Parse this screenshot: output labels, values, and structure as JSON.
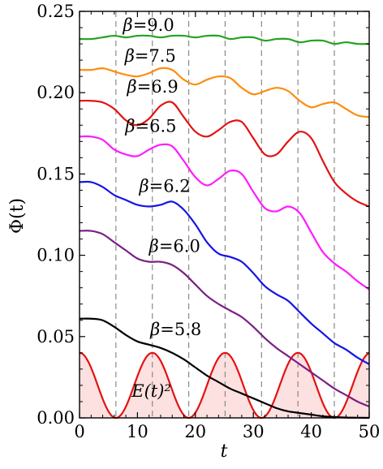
{
  "chart_data": {
    "type": "line",
    "xlabel": "t",
    "ylabel": "Φ(t)",
    "xlim": [
      0,
      50
    ],
    "ylim": [
      0,
      0.25
    ],
    "x_ticks": [
      "0",
      "10",
      "20",
      "30",
      "40",
      "50"
    ],
    "y_ticks": [
      "0.00",
      "0.05",
      "0.10",
      "0.15",
      "0.20",
      "0.25"
    ],
    "vlines_x": [
      6.28,
      12.57,
      18.85,
      25.13,
      31.42,
      37.7,
      43.98
    ],
    "series": [
      {
        "name": "β=9.0",
        "color": "#22a322",
        "x": [
          0,
          2,
          4,
          6,
          8,
          10,
          12,
          14,
          16,
          18,
          20,
          22,
          24,
          26,
          28,
          30,
          32,
          34,
          36,
          38,
          40,
          42,
          44,
          46,
          48,
          50
        ],
        "y": [
          0.233,
          0.233,
          0.234,
          0.235,
          0.234,
          0.235,
          0.235,
          0.234,
          0.235,
          0.235,
          0.234,
          0.235,
          0.235,
          0.233,
          0.234,
          0.234,
          0.232,
          0.233,
          0.233,
          0.231,
          0.232,
          0.232,
          0.23,
          0.231,
          0.23,
          0.23
        ]
      },
      {
        "name": "β=7.5",
        "color": "#ff8c0f",
        "x": [
          0,
          2,
          4,
          6,
          8,
          10,
          12,
          14,
          16,
          18,
          20,
          22,
          24,
          26,
          28,
          30,
          32,
          34,
          36,
          38,
          40,
          42,
          44,
          46,
          48,
          50
        ],
        "y": [
          0.214,
          0.214,
          0.215,
          0.213,
          0.211,
          0.21,
          0.212,
          0.215,
          0.214,
          0.208,
          0.205,
          0.208,
          0.21,
          0.209,
          0.203,
          0.199,
          0.201,
          0.203,
          0.201,
          0.195,
          0.191,
          0.193,
          0.194,
          0.19,
          0.186,
          0.185
        ]
      },
      {
        "name": "β=6.9",
        "color": "#e31212",
        "x": [
          0,
          2,
          4,
          6,
          8,
          10,
          12,
          14,
          16,
          18,
          20,
          22,
          24,
          26,
          28,
          30,
          32,
          34,
          36,
          38,
          40,
          42,
          44,
          46,
          48,
          50
        ],
        "y": [
          0.195,
          0.195,
          0.194,
          0.19,
          0.183,
          0.18,
          0.184,
          0.192,
          0.194,
          0.185,
          0.176,
          0.173,
          0.177,
          0.182,
          0.182,
          0.172,
          0.162,
          0.162,
          0.17,
          0.176,
          0.172,
          0.158,
          0.145,
          0.138,
          0.133,
          0.13
        ]
      },
      {
        "name": "β=6.5",
        "color": "#ff1aff",
        "x": [
          0,
          2,
          4,
          6,
          8,
          10,
          12,
          14,
          16,
          18,
          20,
          22,
          24,
          26,
          28,
          30,
          32,
          34,
          36,
          38,
          40,
          42,
          44,
          46,
          48,
          50
        ],
        "y": [
          0.173,
          0.173,
          0.171,
          0.165,
          0.162,
          0.161,
          0.165,
          0.168,
          0.167,
          0.158,
          0.148,
          0.143,
          0.147,
          0.152,
          0.15,
          0.139,
          0.129,
          0.127,
          0.13,
          0.126,
          0.114,
          0.102,
          0.095,
          0.09,
          0.084,
          0.079
        ]
      },
      {
        "name": "β=6.2",
        "color": "#1414e6",
        "x": [
          0,
          2,
          4,
          6,
          8,
          10,
          12,
          14,
          16,
          18,
          20,
          22,
          24,
          26,
          28,
          30,
          32,
          34,
          36,
          38,
          40,
          42,
          44,
          46,
          48,
          50
        ],
        "y": [
          0.145,
          0.145,
          0.142,
          0.137,
          0.134,
          0.131,
          0.13,
          0.131,
          0.133,
          0.128,
          0.119,
          0.108,
          0.101,
          0.099,
          0.096,
          0.089,
          0.081,
          0.076,
          0.072,
          0.065,
          0.058,
          0.052,
          0.046,
          0.042,
          0.037,
          0.033
        ]
      },
      {
        "name": "β=6.0",
        "color": "#7a1f85",
        "x": [
          0,
          2,
          4,
          6,
          8,
          10,
          12,
          14,
          16,
          18,
          20,
          22,
          24,
          26,
          28,
          30,
          32,
          34,
          36,
          38,
          40,
          42,
          44,
          46,
          48,
          50
        ],
        "y": [
          0.115,
          0.115,
          0.113,
          0.108,
          0.103,
          0.098,
          0.096,
          0.096,
          0.094,
          0.089,
          0.082,
          0.075,
          0.07,
          0.066,
          0.062,
          0.056,
          0.049,
          0.043,
          0.038,
          0.033,
          0.028,
          0.023,
          0.018,
          0.014,
          0.01,
          0.007
        ]
      },
      {
        "name": "β=5.8",
        "color": "#000000",
        "x": [
          0,
          2,
          4,
          6,
          8,
          10,
          12,
          14,
          16,
          18,
          20,
          22,
          24,
          26,
          28,
          30,
          32,
          34,
          36,
          38,
          40,
          42,
          44,
          46,
          48,
          50
        ],
        "y": [
          0.061,
          0.061,
          0.06,
          0.056,
          0.051,
          0.047,
          0.045,
          0.043,
          0.04,
          0.036,
          0.031,
          0.026,
          0.022,
          0.018,
          0.015,
          0.012,
          0.009,
          0.006,
          0.004,
          0.003,
          0.002,
          0.001,
          0.0005,
          0.0002,
          0.0001,
          0.0
        ]
      }
    ],
    "envelope": {
      "name": "E(t)²",
      "color": "#e31212",
      "fill": "#fde0e0",
      "amplitude": 0.04,
      "period": 12.566
    },
    "label_anchors": [
      {
        "text": "β=9.0",
        "x": 7.5,
        "y": 0.238
      },
      {
        "text": "β=7.5",
        "x": 7.8,
        "y": 0.219
      },
      {
        "text": "β=6.9",
        "x": 8.2,
        "y": 0.2
      },
      {
        "text": "β=6.5",
        "x": 7.9,
        "y": 0.176
      },
      {
        "text": "β=6.2",
        "x": 10.3,
        "y": 0.139
      },
      {
        "text": "β=6.0",
        "x": 12.0,
        "y": 0.102
      },
      {
        "text": "β=5.8",
        "x": 12.2,
        "y": 0.051
      }
    ],
    "envelope_label_anchor": {
      "text": "E(t)²",
      "x": 9.0,
      "y": 0.013
    }
  }
}
